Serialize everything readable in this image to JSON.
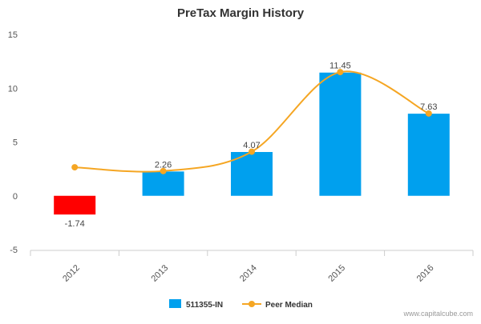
{
  "chart_data": {
    "type": "bar",
    "title": "PreTax Margin History",
    "xlabel": "",
    "ylabel": "",
    "categories": [
      "2012",
      "2013",
      "2014",
      "2015",
      "2016"
    ],
    "ylim": [
      -5,
      15
    ],
    "yticks": [
      -5,
      0,
      5,
      10,
      15
    ],
    "grid": false,
    "legend_position": "bottom-center",
    "series": [
      {
        "name": "511355-IN",
        "kind": "bar",
        "values": [
          -1.74,
          2.26,
          4.07,
          11.45,
          7.63
        ],
        "labels": [
          "-1.74",
          "2.26",
          "4.07",
          "11.45",
          "7.63"
        ],
        "color": "#00a0ee",
        "negative_color": "#ff0000"
      },
      {
        "name": "Peer Median",
        "kind": "line",
        "values": [
          2.65,
          2.3,
          4.1,
          11.5,
          7.65
        ],
        "color": "#f5a623"
      }
    ]
  },
  "credit": "www.capitalcube.com"
}
